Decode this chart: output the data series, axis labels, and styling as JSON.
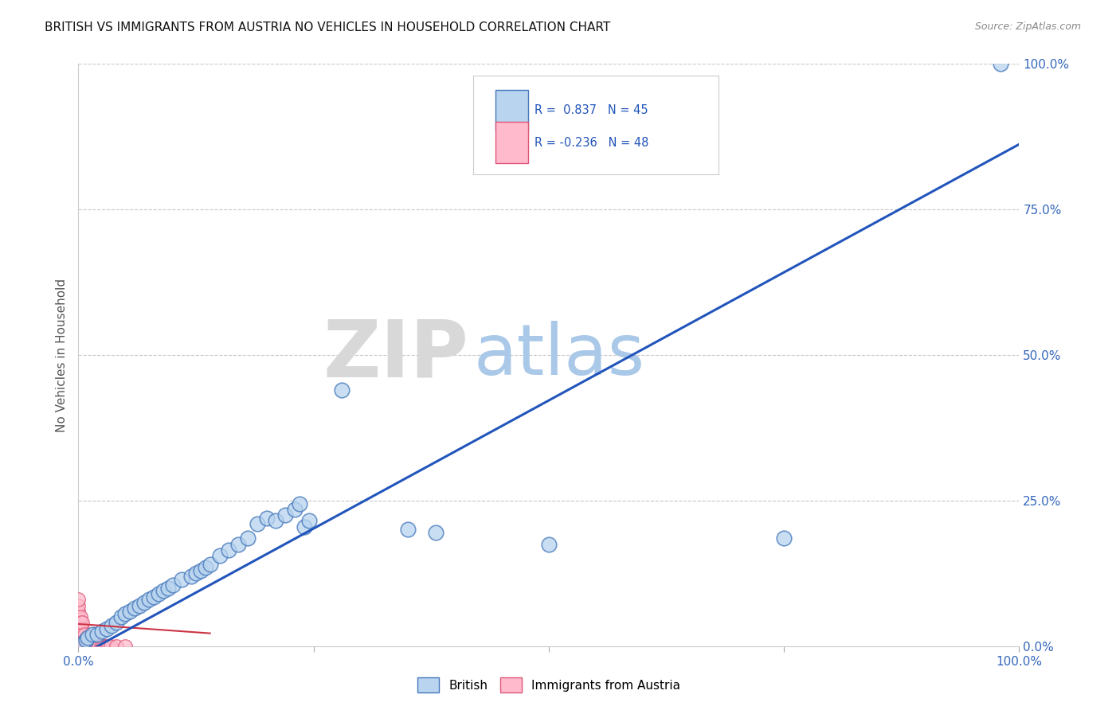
{
  "title": "BRITISH VS IMMIGRANTS FROM AUSTRIA NO VEHICLES IN HOUSEHOLD CORRELATION CHART",
  "source": "Source: ZipAtlas.com",
  "ylabel": "No Vehicles in Household",
  "xlim": [
    0,
    1.0
  ],
  "ylim": [
    0,
    1.0
  ],
  "ytick_values": [
    0.0,
    0.25,
    0.5,
    0.75,
    1.0
  ],
  "background_color": "#ffffff",
  "grid_color": "#c8c8c8",
  "british_color": "#b8d4ee",
  "british_edge_color": "#4477bb",
  "austria_color": "#ffbbcc",
  "austria_edge_color": "#dd5577",
  "trend_color_british": "#2255bb",
  "trend_color_austria": "#cc3344",
  "legend_british_r": "0.837",
  "legend_british_n": "45",
  "legend_austria_r": "-0.236",
  "legend_austria_n": "48",
  "legend_label_british": "British",
  "legend_label_austria": "Immigrants from Austria",
  "title_color": "#111111",
  "axis_label_color": "#3366bb",
  "british_points": [
    [
      0.005,
      0.005
    ],
    [
      0.008,
      0.01
    ],
    [
      0.01,
      0.015
    ],
    [
      0.015,
      0.02
    ],
    [
      0.02,
      0.02
    ],
    [
      0.025,
      0.025
    ],
    [
      0.03,
      0.03
    ],
    [
      0.035,
      0.035
    ],
    [
      0.04,
      0.04
    ],
    [
      0.045,
      0.05
    ],
    [
      0.05,
      0.055
    ],
    [
      0.055,
      0.06
    ],
    [
      0.06,
      0.065
    ],
    [
      0.065,
      0.07
    ],
    [
      0.07,
      0.075
    ],
    [
      0.075,
      0.08
    ],
    [
      0.08,
      0.085
    ],
    [
      0.085,
      0.09
    ],
    [
      0.09,
      0.095
    ],
    [
      0.095,
      0.1
    ],
    [
      0.1,
      0.105
    ],
    [
      0.11,
      0.115
    ],
    [
      0.12,
      0.12
    ],
    [
      0.125,
      0.125
    ],
    [
      0.13,
      0.13
    ],
    [
      0.135,
      0.135
    ],
    [
      0.14,
      0.14
    ],
    [
      0.15,
      0.155
    ],
    [
      0.16,
      0.165
    ],
    [
      0.17,
      0.175
    ],
    [
      0.18,
      0.185
    ],
    [
      0.19,
      0.21
    ],
    [
      0.2,
      0.22
    ],
    [
      0.21,
      0.215
    ],
    [
      0.22,
      0.225
    ],
    [
      0.23,
      0.235
    ],
    [
      0.235,
      0.245
    ],
    [
      0.24,
      0.205
    ],
    [
      0.245,
      0.215
    ],
    [
      0.28,
      0.44
    ],
    [
      0.35,
      0.2
    ],
    [
      0.38,
      0.195
    ],
    [
      0.5,
      0.175
    ],
    [
      0.75,
      0.185
    ],
    [
      0.98,
      1.0
    ]
  ],
  "austria_points": [
    [
      0.0,
      0.0
    ],
    [
      0.0,
      0.005
    ],
    [
      0.0,
      0.01
    ],
    [
      0.0,
      0.015
    ],
    [
      0.0,
      0.02
    ],
    [
      0.0,
      0.025
    ],
    [
      0.0,
      0.03
    ],
    [
      0.0,
      0.04
    ],
    [
      0.0,
      0.05
    ],
    [
      0.0,
      0.06
    ],
    [
      0.0,
      0.07
    ],
    [
      0.0,
      0.08
    ],
    [
      0.002,
      0.0
    ],
    [
      0.002,
      0.01
    ],
    [
      0.002,
      0.02
    ],
    [
      0.002,
      0.03
    ],
    [
      0.002,
      0.04
    ],
    [
      0.002,
      0.05
    ],
    [
      0.004,
      0.0
    ],
    [
      0.004,
      0.01
    ],
    [
      0.004,
      0.02
    ],
    [
      0.004,
      0.03
    ],
    [
      0.004,
      0.04
    ],
    [
      0.006,
      0.0
    ],
    [
      0.006,
      0.01
    ],
    [
      0.006,
      0.02
    ],
    [
      0.008,
      0.0
    ],
    [
      0.008,
      0.01
    ],
    [
      0.01,
      0.0
    ],
    [
      0.01,
      0.005
    ],
    [
      0.01,
      0.01
    ],
    [
      0.01,
      0.015
    ],
    [
      0.012,
      0.0
    ],
    [
      0.012,
      0.005
    ],
    [
      0.014,
      0.0
    ],
    [
      0.014,
      0.005
    ],
    [
      0.016,
      0.0
    ],
    [
      0.018,
      0.0
    ],
    [
      0.02,
      0.0
    ],
    [
      0.022,
      0.0
    ],
    [
      0.024,
      0.0
    ],
    [
      0.026,
      0.0
    ],
    [
      0.028,
      0.0
    ],
    [
      0.03,
      0.0
    ],
    [
      0.032,
      0.0
    ],
    [
      0.034,
      0.0
    ],
    [
      0.04,
      0.0
    ],
    [
      0.05,
      0.0
    ]
  ],
  "british_trend": [
    0.0,
    1.0,
    -0.018,
    0.862
  ],
  "austria_trend": [
    0.0,
    0.14,
    0.038,
    0.022
  ]
}
